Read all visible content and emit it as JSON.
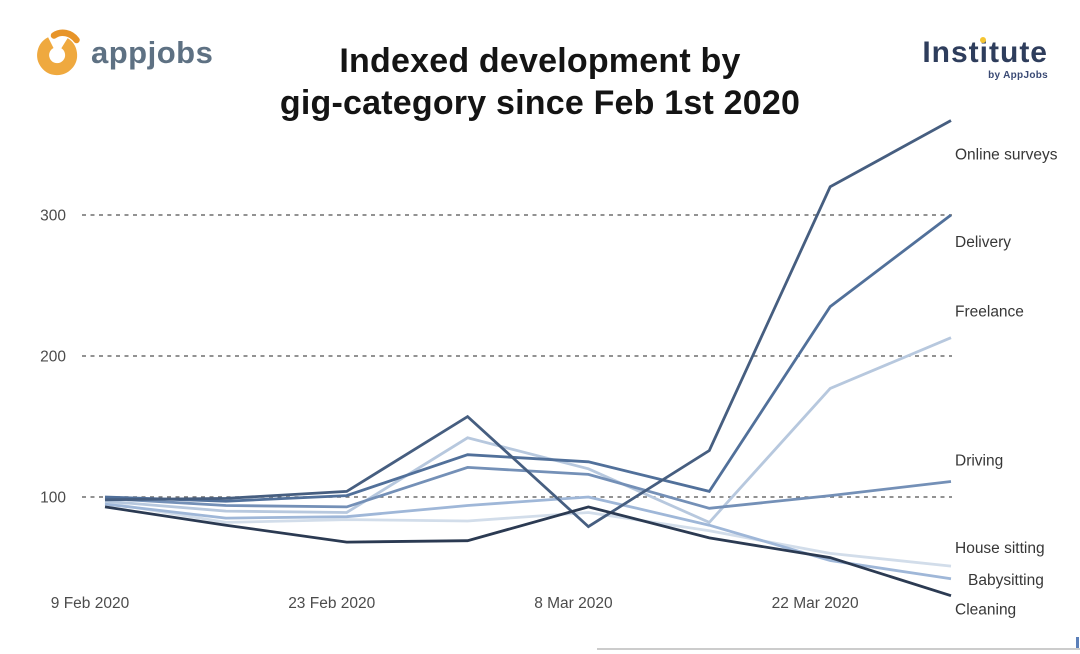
{
  "header": {
    "appjobs_wordmark": "appjobs",
    "institute_part1": "Inst",
    "institute_part2": "i",
    "institute_part3": "tute",
    "institute_subtext": "by AppJobs",
    "title_line1": "Indexed development by",
    "title_line2": "gig-category since Feb 1st 2020"
  },
  "colors": {
    "appjobs_ring_orange": "#EFA93F",
    "appjobs_hook_orange": "#E79428",
    "appjobs_wordmark_gray_blue": "#5E7183",
    "institute_navy": "#2E3D5C",
    "institute_dot_yellow": "#F5C531",
    "title_black": "#141414",
    "axis_text_gray": "#4B4B4B",
    "gridline_gray": "#6F6F6F",
    "series_label_gray": "#373737"
  },
  "chart_data": {
    "type": "line",
    "title": "Indexed development by gig-category since Feb 1st 2020",
    "x": [
      "9 Feb 2020",
      "16 Feb 2020",
      "23 Feb 2020",
      "1 Mar 2020",
      "8 Mar 2020",
      "15 Mar 2020",
      "22 Mar 2020",
      "29 Mar 2020"
    ],
    "x_ticks": [
      {
        "label": "9 Feb 2020",
        "point_index": 0
      },
      {
        "label": "23 Feb 2020",
        "point_index": 2
      },
      {
        "label": "8 Mar 2020",
        "point_index": 4
      },
      {
        "label": "22 Mar 2020",
        "point_index": 6
      }
    ],
    "yticks": [
      100,
      200,
      300
    ],
    "ylim": [
      20,
      380
    ],
    "baseline_value": 100,
    "grid": "horizontal dashed at yticks",
    "legend_position": "labels at right line ends",
    "series": [
      {
        "name": "Online surveys",
        "color": "#465E80",
        "values": [
          98,
          99,
          104,
          157,
          79,
          133,
          320,
          367
        ],
        "label_dy": 34,
        "label_dx": 0
      },
      {
        "name": "Delivery",
        "color": "#51709A",
        "values": [
          100,
          97,
          101,
          130,
          125,
          104,
          235,
          300
        ],
        "label_dy": 27,
        "label_dx": 0
      },
      {
        "name": "Freelance",
        "color": "#B7C8DE",
        "values": [
          97,
          90,
          89,
          142,
          120,
          82,
          177,
          213
        ],
        "label_dy": -26,
        "label_dx": 0
      },
      {
        "name": "Driving",
        "color": "#7490B7",
        "values": [
          99,
          94,
          93,
          121,
          116,
          92,
          101,
          111
        ],
        "label_dy": -21,
        "label_dx": 0
      },
      {
        "name": "House sitting",
        "color": "#D2DDEA",
        "values": [
          96,
          82,
          84,
          83,
          89,
          76,
          60,
          51
        ],
        "label_dy": -18,
        "label_dx": 0
      },
      {
        "name": "Babysitting",
        "color": "#9FB7D8",
        "values": [
          95,
          85,
          86,
          94,
          100,
          80,
          55,
          42
        ],
        "label_dy": 1,
        "label_dx": 13
      },
      {
        "name": "Cleaning",
        "color": "#2B3A52",
        "values": [
          93,
          80,
          68,
          69,
          93,
          71,
          57,
          30
        ],
        "label_dy": 14,
        "label_dx": 0
      }
    ]
  }
}
